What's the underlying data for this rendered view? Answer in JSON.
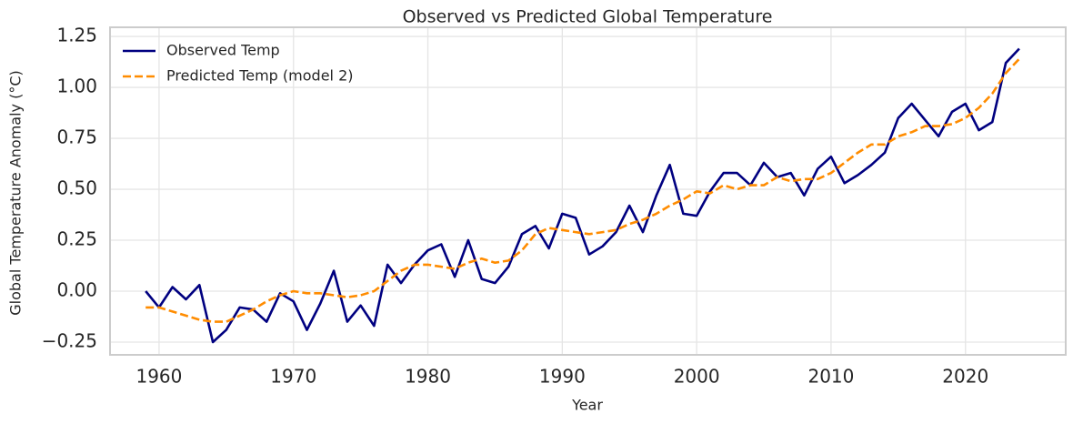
{
  "chart_data": {
    "type": "line",
    "title": "Observed vs Predicted Global Temperature",
    "xlabel": "Year",
    "ylabel": "Global Temperature Anomaly (°C)",
    "x": [
      1959,
      1960,
      1961,
      1962,
      1963,
      1964,
      1965,
      1966,
      1967,
      1968,
      1969,
      1970,
      1971,
      1972,
      1973,
      1974,
      1975,
      1976,
      1977,
      1978,
      1979,
      1980,
      1981,
      1982,
      1983,
      1984,
      1985,
      1986,
      1987,
      1988,
      1989,
      1990,
      1991,
      1992,
      1993,
      1994,
      1995,
      1996,
      1997,
      1998,
      1999,
      2000,
      2001,
      2002,
      2003,
      2004,
      2005,
      2006,
      2007,
      2008,
      2009,
      2010,
      2011,
      2012,
      2013,
      2014,
      2015,
      2016,
      2017,
      2018,
      2019,
      2020,
      2021,
      2022,
      2023,
      2024
    ],
    "series": [
      {
        "name": "Observed Temp",
        "color": "#000080",
        "linestyle": "solid",
        "values": [
          0.0,
          -0.08,
          0.02,
          -0.04,
          0.03,
          -0.25,
          -0.19,
          -0.08,
          -0.09,
          -0.15,
          -0.01,
          -0.05,
          -0.19,
          -0.06,
          0.1,
          -0.15,
          -0.07,
          -0.17,
          0.13,
          0.04,
          0.13,
          0.2,
          0.23,
          0.07,
          0.25,
          0.06,
          0.04,
          0.12,
          0.28,
          0.32,
          0.21,
          0.38,
          0.36,
          0.18,
          0.22,
          0.29,
          0.42,
          0.29,
          0.47,
          0.62,
          0.38,
          0.37,
          0.49,
          0.58,
          0.58,
          0.52,
          0.63,
          0.56,
          0.58,
          0.47,
          0.6,
          0.66,
          0.53,
          0.57,
          0.62,
          0.68,
          0.85,
          0.92,
          0.84,
          0.76,
          0.88,
          0.92,
          0.79,
          0.83,
          1.12,
          1.19
        ]
      },
      {
        "name": "Predicted Temp (model 2)",
        "color": "#ff8c00",
        "linestyle": "dashed",
        "values": [
          -0.08,
          -0.08,
          -0.1,
          -0.12,
          -0.14,
          -0.15,
          -0.15,
          -0.12,
          -0.09,
          -0.05,
          -0.02,
          0.0,
          -0.01,
          -0.01,
          -0.02,
          -0.03,
          -0.02,
          0.0,
          0.05,
          0.1,
          0.13,
          0.13,
          0.12,
          0.11,
          0.14,
          0.16,
          0.14,
          0.15,
          0.2,
          0.28,
          0.31,
          0.3,
          0.29,
          0.28,
          0.29,
          0.3,
          0.33,
          0.35,
          0.38,
          0.42,
          0.45,
          0.49,
          0.48,
          0.52,
          0.5,
          0.52,
          0.52,
          0.56,
          0.54,
          0.55,
          0.55,
          0.58,
          0.63,
          0.68,
          0.72,
          0.72,
          0.76,
          0.78,
          0.81,
          0.81,
          0.82,
          0.85,
          0.9,
          0.97,
          1.07,
          1.14
        ]
      }
    ],
    "xlim": [
      1956.35,
      2027.46
    ],
    "xticks": [
      1960,
      1970,
      1980,
      1990,
      2000,
      2010,
      2020
    ],
    "ylim": [
      -0.3125,
      1.295
    ],
    "yticks": [
      {
        "value": -0.25,
        "label": "−0.25"
      },
      {
        "value": 0,
        "label": "0.00"
      },
      {
        "value": 0.25,
        "label": "0.25"
      },
      {
        "value": 0.5,
        "label": "0.50"
      },
      {
        "value": 0.75,
        "label": "0.75"
      },
      {
        "value": 1,
        "label": "1.00"
      },
      {
        "value": 1.25,
        "label": "1.25"
      }
    ],
    "grid": true,
    "legend": "upper left"
  }
}
